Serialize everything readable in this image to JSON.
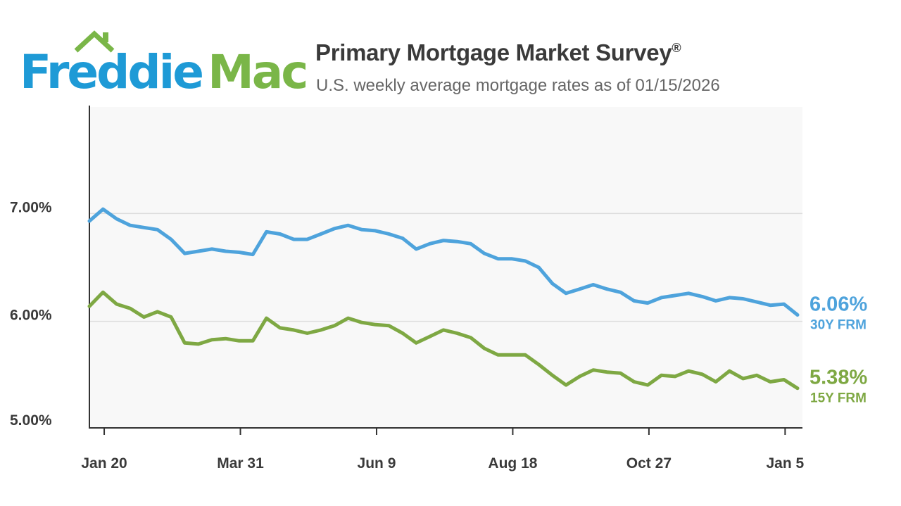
{
  "logo": {
    "part1": "Freddie",
    "part2": "Mac",
    "colors": {
      "freddie": "#1e9ad6",
      "mac": "#7ab648"
    },
    "icon": "house-roof-icon"
  },
  "header": {
    "title": "Primary Mortgage Market Survey",
    "title_mark": "®",
    "subtitle": "U.S. weekly average mortgage rates as of 01/15/2026"
  },
  "chart_data": {
    "type": "line",
    "title": "Primary Mortgage Market Survey®",
    "subtitle": "U.S. weekly average mortgage rates as of 01/15/2026",
    "xlabel": "",
    "ylabel": "",
    "ylim": [
      5.0,
      8.0
    ],
    "grid": "horizontal",
    "y_ticks": [
      {
        "value": 7.0,
        "label": "7.00%"
      },
      {
        "value": 6.0,
        "label": "6.00%"
      },
      {
        "value": 5.0,
        "label": "5.00%"
      }
    ],
    "x_ticks": [
      {
        "date": "2025-01-20",
        "label": "Jan 20"
      },
      {
        "date": "2025-03-31",
        "label": "Mar 31"
      },
      {
        "date": "2025-06-09",
        "label": "Jun 9"
      },
      {
        "date": "2025-08-18",
        "label": "Aug 18"
      },
      {
        "date": "2025-10-27",
        "label": "Oct 27"
      },
      {
        "date": "2026-01-05",
        "label": "Jan 5"
      }
    ],
    "x_start": "2025-01-16",
    "x_end": "2026-01-15",
    "series": [
      {
        "name": "30Y FRM",
        "end_label": "6.06%",
        "color": "#4ea3dc",
        "values": [
          6.93,
          7.04,
          6.95,
          6.89,
          6.87,
          6.85,
          6.76,
          6.63,
          6.65,
          6.67,
          6.65,
          6.64,
          6.62,
          6.83,
          6.81,
          6.76,
          6.76,
          6.81,
          6.86,
          6.89,
          6.85,
          6.84,
          6.81,
          6.77,
          6.67,
          6.72,
          6.75,
          6.74,
          6.72,
          6.63,
          6.58,
          6.58,
          6.56,
          6.5,
          6.35,
          6.26,
          6.3,
          6.34,
          6.3,
          6.27,
          6.19,
          6.17,
          6.22,
          6.24,
          6.26,
          6.23,
          6.19,
          6.22,
          6.21,
          6.18,
          6.15,
          6.16,
          6.06
        ]
      },
      {
        "name": "15Y FRM",
        "end_label": "5.38%",
        "color": "#7ea843",
        "values": [
          6.14,
          6.27,
          6.16,
          6.12,
          6.04,
          6.09,
          6.04,
          5.8,
          5.79,
          5.83,
          5.84,
          5.82,
          5.82,
          6.03,
          5.94,
          5.92,
          5.89,
          5.92,
          5.96,
          6.03,
          5.99,
          5.97,
          5.96,
          5.89,
          5.8,
          5.86,
          5.92,
          5.89,
          5.85,
          5.75,
          5.69,
          5.69,
          5.69,
          5.6,
          5.5,
          5.41,
          5.49,
          5.55,
          5.53,
          5.52,
          5.44,
          5.41,
          5.5,
          5.49,
          5.54,
          5.51,
          5.44,
          5.54,
          5.47,
          5.5,
          5.44,
          5.46,
          5.38
        ]
      }
    ]
  }
}
